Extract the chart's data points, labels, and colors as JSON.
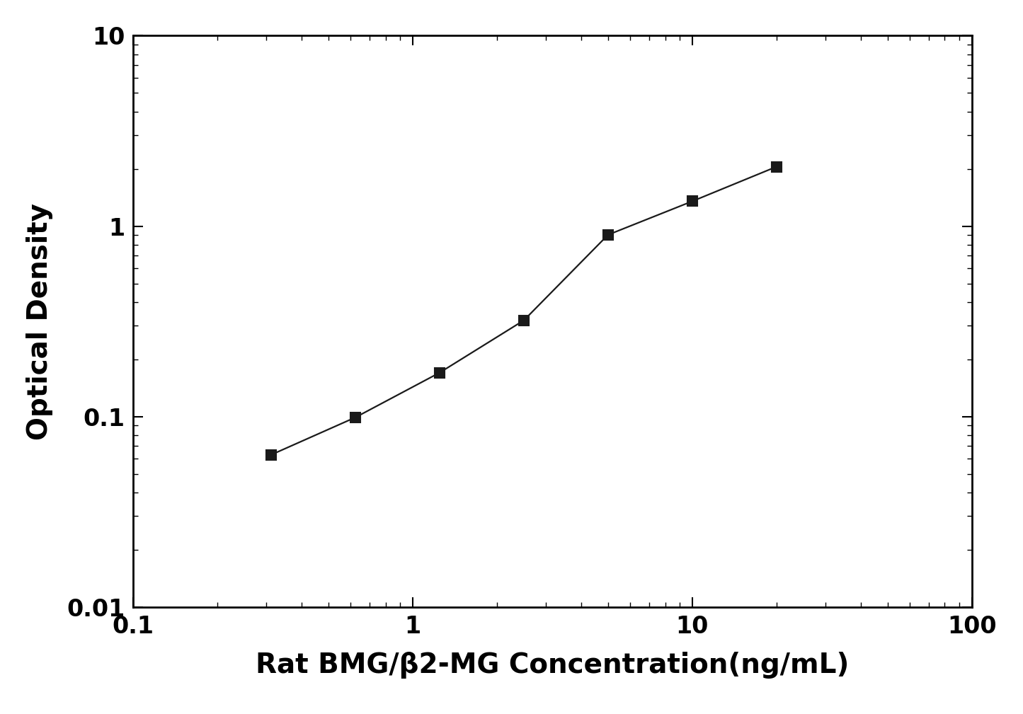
{
  "x": [
    0.3125,
    0.625,
    1.25,
    2.5,
    5.0,
    10.0,
    20.0
  ],
  "y": [
    0.063,
    0.099,
    0.17,
    0.32,
    0.9,
    1.35,
    2.05
  ],
  "xlabel": "Rat BMG/β2-MG Concentration(ng/mL)",
  "ylabel": "Optical Density",
  "xlim": [
    0.1,
    100
  ],
  "ylim": [
    0.01,
    10
  ],
  "line_color": "#1a1a1a",
  "marker": "s",
  "marker_color": "#1a1a1a",
  "marker_size": 10,
  "linewidth": 1.6,
  "xlabel_fontsize": 28,
  "ylabel_fontsize": 28,
  "tick_fontsize": 24,
  "background_color": "#ffffff"
}
